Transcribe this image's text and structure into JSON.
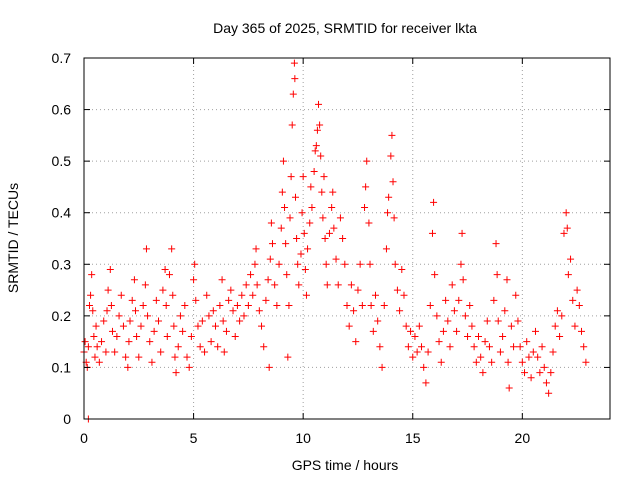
{
  "chart_data": {
    "type": "scatter",
    "title": "Day 365 of 2025, SRMTID for receiver lkta",
    "xlabel": "GPS time / hours",
    "ylabel": "SRMTID / TECUs",
    "xlim": [
      0,
      24
    ],
    "ylim": [
      0,
      0.7
    ],
    "xticks": [
      0,
      5,
      10,
      15,
      20
    ],
    "xtick_labels": [
      "0",
      "5",
      "10",
      "15",
      "20"
    ],
    "yticks": [
      0,
      0.1,
      0.2,
      0.3,
      0.4,
      0.5,
      0.6,
      0.7
    ],
    "ytick_labels": [
      "0",
      "0.1",
      "0.2",
      "0.3",
      "0.4",
      "0.5",
      "0.6",
      "0.7"
    ],
    "grid": true,
    "marker": "plus",
    "color": "#ff0000",
    "series": [
      {
        "name": "SRMTID",
        "points": [
          [
            0.0,
            0.13
          ],
          [
            0.05,
            0.15
          ],
          [
            0.1,
            0.11
          ],
          [
            0.15,
            0.1
          ],
          [
            0.2,
            0.14
          ],
          [
            0.2,
            0.0
          ],
          [
            0.25,
            0.22
          ],
          [
            0.3,
            0.24
          ],
          [
            0.35,
            0.28
          ],
          [
            0.4,
            0.21
          ],
          [
            0.45,
            0.16
          ],
          [
            0.5,
            0.12
          ],
          [
            0.55,
            0.18
          ],
          [
            0.6,
            0.14
          ],
          [
            0.7,
            0.11
          ],
          [
            0.8,
            0.15
          ],
          [
            0.9,
            0.19
          ],
          [
            1.0,
            0.13
          ],
          [
            1.05,
            0.21
          ],
          [
            1.1,
            0.25
          ],
          [
            1.2,
            0.29
          ],
          [
            1.25,
            0.22
          ],
          [
            1.3,
            0.17
          ],
          [
            1.4,
            0.13
          ],
          [
            1.5,
            0.16
          ],
          [
            1.6,
            0.2
          ],
          [
            1.7,
            0.24
          ],
          [
            1.8,
            0.18
          ],
          [
            1.9,
            0.12
          ],
          [
            2.0,
            0.1
          ],
          [
            2.05,
            0.15
          ],
          [
            2.1,
            0.19
          ],
          [
            2.2,
            0.23
          ],
          [
            2.3,
            0.27
          ],
          [
            2.35,
            0.21
          ],
          [
            2.4,
            0.16
          ],
          [
            2.5,
            0.12
          ],
          [
            2.6,
            0.18
          ],
          [
            2.7,
            0.22
          ],
          [
            2.8,
            0.26
          ],
          [
            2.85,
            0.33
          ],
          [
            2.9,
            0.2
          ],
          [
            3.0,
            0.15
          ],
          [
            3.1,
            0.11
          ],
          [
            3.2,
            0.17
          ],
          [
            3.3,
            0.23
          ],
          [
            3.4,
            0.19
          ],
          [
            3.5,
            0.13
          ],
          [
            3.6,
            0.25
          ],
          [
            3.7,
            0.29
          ],
          [
            3.75,
            0.22
          ],
          [
            3.8,
            0.16
          ],
          [
            3.9,
            0.28
          ],
          [
            4.0,
            0.33
          ],
          [
            4.05,
            0.24
          ],
          [
            4.1,
            0.18
          ],
          [
            4.15,
            0.12
          ],
          [
            4.2,
            0.09
          ],
          [
            4.3,
            0.14
          ],
          [
            4.4,
            0.2
          ],
          [
            4.5,
            0.17
          ],
          [
            4.6,
            0.22
          ],
          [
            4.7,
            0.12
          ],
          [
            4.8,
            0.1
          ],
          [
            4.9,
            0.16
          ],
          [
            5.0,
            0.27
          ],
          [
            5.05,
            0.3
          ],
          [
            5.1,
            0.23
          ],
          [
            5.2,
            0.18
          ],
          [
            5.3,
            0.14
          ],
          [
            5.4,
            0.19
          ],
          [
            5.5,
            0.13
          ],
          [
            5.6,
            0.24
          ],
          [
            5.7,
            0.2
          ],
          [
            5.8,
            0.15
          ],
          [
            5.9,
            0.21
          ],
          [
            6.0,
            0.18
          ],
          [
            6.1,
            0.14
          ],
          [
            6.2,
            0.22
          ],
          [
            6.3,
            0.27
          ],
          [
            6.35,
            0.19
          ],
          [
            6.4,
            0.13
          ],
          [
            6.5,
            0.17
          ],
          [
            6.6,
            0.23
          ],
          [
            6.7,
            0.25
          ],
          [
            6.8,
            0.21
          ],
          [
            6.9,
            0.16
          ],
          [
            7.0,
            0.22
          ],
          [
            7.1,
            0.19
          ],
          [
            7.2,
            0.24
          ],
          [
            7.3,
            0.2
          ],
          [
            7.4,
            0.26
          ],
          [
            7.5,
            0.22
          ],
          [
            7.6,
            0.28
          ],
          [
            7.7,
            0.24
          ],
          [
            7.8,
            0.3
          ],
          [
            7.85,
            0.33
          ],
          [
            7.9,
            0.26
          ],
          [
            8.0,
            0.21
          ],
          [
            8.1,
            0.18
          ],
          [
            8.2,
            0.14
          ],
          [
            8.3,
            0.23
          ],
          [
            8.4,
            0.27
          ],
          [
            8.45,
            0.1
          ],
          [
            8.5,
            0.31
          ],
          [
            8.55,
            0.38
          ],
          [
            8.6,
            0.34
          ],
          [
            8.7,
            0.26
          ],
          [
            8.8,
            0.22
          ],
          [
            8.9,
            0.3
          ],
          [
            9.0,
            0.37
          ],
          [
            9.05,
            0.44
          ],
          [
            9.1,
            0.5
          ],
          [
            9.15,
            0.41
          ],
          [
            9.2,
            0.34
          ],
          [
            9.25,
            0.28
          ],
          [
            9.3,
            0.12
          ],
          [
            9.35,
            0.22
          ],
          [
            9.4,
            0.39
          ],
          [
            9.45,
            0.47
          ],
          [
            9.5,
            0.57
          ],
          [
            9.55,
            0.63
          ],
          [
            9.6,
            0.69
          ],
          [
            9.62,
            0.66
          ],
          [
            9.65,
            0.43
          ],
          [
            9.7,
            0.35
          ],
          [
            9.75,
            0.3
          ],
          [
            9.8,
            0.26
          ],
          [
            9.9,
            0.32
          ],
          [
            9.95,
            0.4
          ],
          [
            10.0,
            0.47
          ],
          [
            10.05,
            0.36
          ],
          [
            10.1,
            0.29
          ],
          [
            10.15,
            0.24
          ],
          [
            10.2,
            0.33
          ],
          [
            10.3,
            0.38
          ],
          [
            10.35,
            0.45
          ],
          [
            10.4,
            0.41
          ],
          [
            10.5,
            0.48
          ],
          [
            10.55,
            0.52
          ],
          [
            10.6,
            0.53
          ],
          [
            10.65,
            0.56
          ],
          [
            10.7,
            0.61
          ],
          [
            10.75,
            0.57
          ],
          [
            10.8,
            0.51
          ],
          [
            10.85,
            0.44
          ],
          [
            10.9,
            0.39
          ],
          [
            10.95,
            0.47
          ],
          [
            11.0,
            0.35
          ],
          [
            11.05,
            0.3
          ],
          [
            11.1,
            0.26
          ],
          [
            11.2,
            0.36
          ],
          [
            11.3,
            0.41
          ],
          [
            11.35,
            0.44
          ],
          [
            11.4,
            0.37
          ],
          [
            11.5,
            0.31
          ],
          [
            11.6,
            0.26
          ],
          [
            11.7,
            0.39
          ],
          [
            11.8,
            0.35
          ],
          [
            11.9,
            0.3
          ],
          [
            12.0,
            0.22
          ],
          [
            12.1,
            0.18
          ],
          [
            12.2,
            0.26
          ],
          [
            12.3,
            0.21
          ],
          [
            12.4,
            0.15
          ],
          [
            12.5,
            0.25
          ],
          [
            12.6,
            0.3
          ],
          [
            12.7,
            0.22
          ],
          [
            12.8,
            0.41
          ],
          [
            12.85,
            0.45
          ],
          [
            12.9,
            0.5
          ],
          [
            13.0,
            0.38
          ],
          [
            13.05,
            0.3
          ],
          [
            13.1,
            0.22
          ],
          [
            13.2,
            0.17
          ],
          [
            13.3,
            0.24
          ],
          [
            13.4,
            0.19
          ],
          [
            13.5,
            0.14
          ],
          [
            13.6,
            0.1
          ],
          [
            13.7,
            0.22
          ],
          [
            13.8,
            0.33
          ],
          [
            13.85,
            0.4
          ],
          [
            13.9,
            0.43
          ],
          [
            14.0,
            0.51
          ],
          [
            14.05,
            0.55
          ],
          [
            14.1,
            0.46
          ],
          [
            14.15,
            0.39
          ],
          [
            14.2,
            0.3
          ],
          [
            14.3,
            0.25
          ],
          [
            14.4,
            0.21
          ],
          [
            14.5,
            0.29
          ],
          [
            14.6,
            0.24
          ],
          [
            14.7,
            0.18
          ],
          [
            14.8,
            0.14
          ],
          [
            14.9,
            0.17
          ],
          [
            15.0,
            0.12
          ],
          [
            15.1,
            0.16
          ],
          [
            15.2,
            0.13
          ],
          [
            15.3,
            0.18
          ],
          [
            15.4,
            0.14
          ],
          [
            15.5,
            0.1
          ],
          [
            15.6,
            0.07
          ],
          [
            15.7,
            0.13
          ],
          [
            15.8,
            0.22
          ],
          [
            15.9,
            0.36
          ],
          [
            15.95,
            0.42
          ],
          [
            16.0,
            0.28
          ],
          [
            16.1,
            0.2
          ],
          [
            16.2,
            0.15
          ],
          [
            16.3,
            0.11
          ],
          [
            16.4,
            0.17
          ],
          [
            16.5,
            0.23
          ],
          [
            16.6,
            0.19
          ],
          [
            16.7,
            0.14
          ],
          [
            16.8,
            0.26
          ],
          [
            16.9,
            0.21
          ],
          [
            17.0,
            0.17
          ],
          [
            17.1,
            0.23
          ],
          [
            17.2,
            0.3
          ],
          [
            17.25,
            0.36
          ],
          [
            17.3,
            0.27
          ],
          [
            17.4,
            0.2
          ],
          [
            17.5,
            0.16
          ],
          [
            17.6,
            0.22
          ],
          [
            17.7,
            0.18
          ],
          [
            17.8,
            0.14
          ],
          [
            17.9,
            0.11
          ],
          [
            18.0,
            0.16
          ],
          [
            18.1,
            0.12
          ],
          [
            18.2,
            0.09
          ],
          [
            18.3,
            0.15
          ],
          [
            18.4,
            0.19
          ],
          [
            18.5,
            0.14
          ],
          [
            18.6,
            0.11
          ],
          [
            18.7,
            0.23
          ],
          [
            18.8,
            0.34
          ],
          [
            18.85,
            0.28
          ],
          [
            18.9,
            0.19
          ],
          [
            19.0,
            0.13
          ],
          [
            19.1,
            0.16
          ],
          [
            19.2,
            0.21
          ],
          [
            19.3,
            0.27
          ],
          [
            19.35,
            0.11
          ],
          [
            19.4,
            0.06
          ],
          [
            19.5,
            0.18
          ],
          [
            19.6,
            0.14
          ],
          [
            19.7,
            0.24
          ],
          [
            19.8,
            0.19
          ],
          [
            19.9,
            0.14
          ],
          [
            20.0,
            0.11
          ],
          [
            20.1,
            0.09
          ],
          [
            20.2,
            0.15
          ],
          [
            20.3,
            0.12
          ],
          [
            20.4,
            0.08
          ],
          [
            20.5,
            0.13
          ],
          [
            20.6,
            0.17
          ],
          [
            20.7,
            0.12
          ],
          [
            20.8,
            0.09
          ],
          [
            20.9,
            0.14
          ],
          [
            21.0,
            0.1
          ],
          [
            21.1,
            0.07
          ],
          [
            21.2,
            0.05
          ],
          [
            21.3,
            0.09
          ],
          [
            21.4,
            0.13
          ],
          [
            21.5,
            0.18
          ],
          [
            21.6,
            0.21
          ],
          [
            21.7,
            0.16
          ],
          [
            21.8,
            0.2
          ],
          [
            21.9,
            0.36
          ],
          [
            22.0,
            0.4
          ],
          [
            22.05,
            0.37
          ],
          [
            22.1,
            0.28
          ],
          [
            22.2,
            0.31
          ],
          [
            22.3,
            0.23
          ],
          [
            22.4,
            0.18
          ],
          [
            22.5,
            0.25
          ],
          [
            22.6,
            0.22
          ],
          [
            22.7,
            0.17
          ],
          [
            22.8,
            0.14
          ],
          [
            22.9,
            0.11
          ]
        ]
      }
    ]
  }
}
